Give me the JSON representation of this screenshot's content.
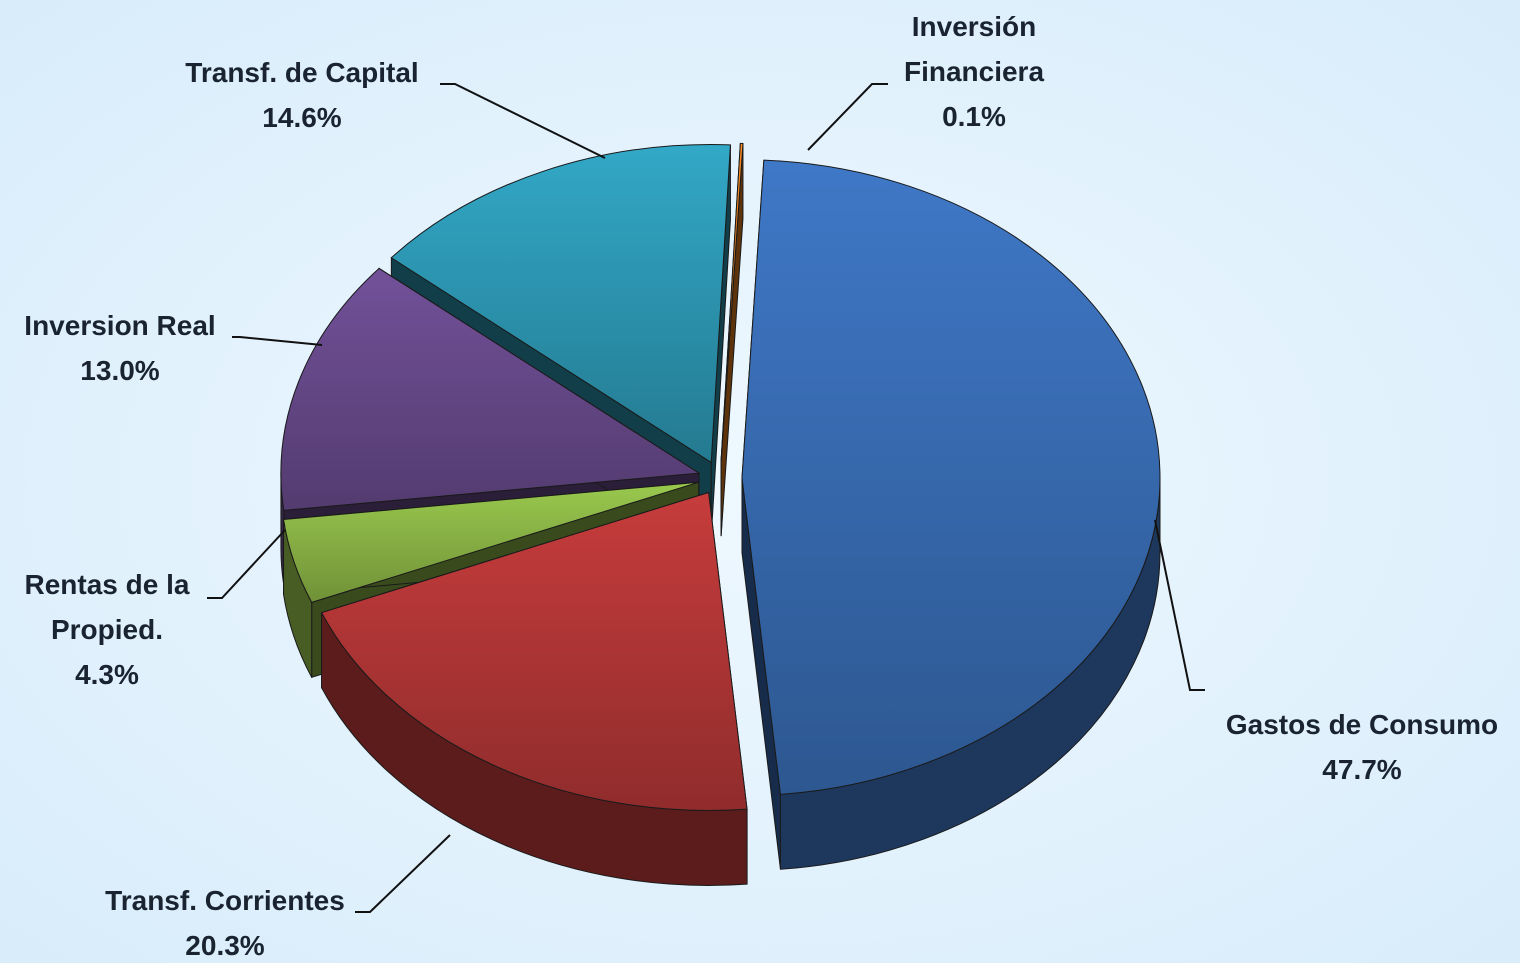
{
  "chart_data": {
    "type": "pie",
    "categories": [
      "Gastos de Consumo",
      "Transf. Corrientes",
      "Rentas de la Propied.",
      "Inversion Real",
      "Transf. de Capital",
      "Inversión Financiera"
    ],
    "values": [
      47.7,
      20.3,
      4.3,
      13.0,
      14.6,
      0.1
    ],
    "value_labels": [
      "47.7%",
      "20.3%",
      "4.3%",
      "13.0%",
      "14.6%",
      "0.1%"
    ],
    "colors": [
      "#3a6fb8",
      "#b83838",
      "#8fba48",
      "#6a4b8e",
      "#2e9cb8",
      "#e8801e"
    ]
  }
}
